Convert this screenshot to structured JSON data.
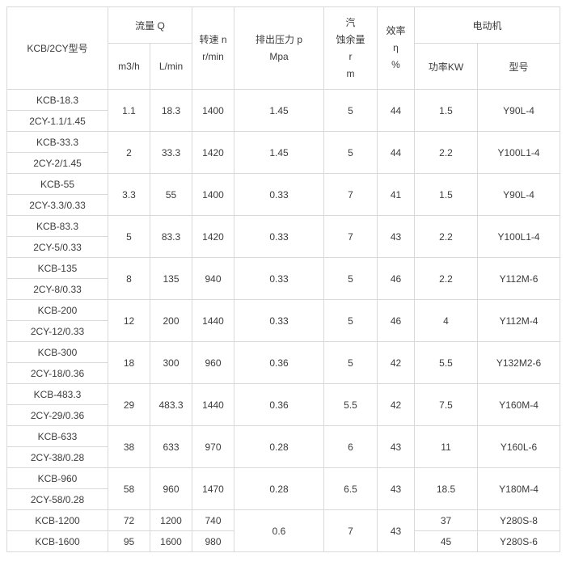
{
  "table": {
    "header": {
      "model": "KCB/2CY型号",
      "flow": "流量 Q",
      "flow_m3h": "m3/h",
      "flow_lmin": "L/min",
      "speed_lines": [
        "转速 n",
        "r/min"
      ],
      "pressure_lines": [
        "排出压力 p",
        "Mpa"
      ],
      "npsh_lines": [
        "汽",
        "蚀余量",
        "r",
        "m"
      ],
      "efficiency_lines": [
        "效率",
        "η",
        "%"
      ],
      "motor": "电动机",
      "motor_power": "功率KW",
      "motor_model": "型号"
    },
    "groups": [
      {
        "models": [
          "KCB-18.3",
          "2CY-1.1/1.45"
        ],
        "m3h": "1.1",
        "lmin": "18.3",
        "speed": "1400",
        "pressure": "1.45",
        "npsh": "5",
        "eff": "44",
        "power": "1.5",
        "motor": "Y90L-4"
      },
      {
        "models": [
          "KCB-33.3",
          "2CY-2/1.45"
        ],
        "m3h": "2",
        "lmin": "33.3",
        "speed": "1420",
        "pressure": "1.45",
        "npsh": "5",
        "eff": "44",
        "power": "2.2",
        "motor": "Y100L1-4"
      },
      {
        "models": [
          "KCB-55",
          "2CY-3.3/0.33"
        ],
        "m3h": "3.3",
        "lmin": "55",
        "speed": "1400",
        "pressure": "0.33",
        "npsh": "7",
        "eff": "41",
        "power": "1.5",
        "motor": "Y90L-4"
      },
      {
        "models": [
          "KCB-83.3",
          "2CY-5/0.33"
        ],
        "m3h": "5",
        "lmin": "83.3",
        "speed": "1420",
        "pressure": "0.33",
        "npsh": "7",
        "eff": "43",
        "power": "2.2",
        "motor": "Y100L1-4"
      },
      {
        "models": [
          "KCB-135",
          "2CY-8/0.33"
        ],
        "m3h": "8",
        "lmin": "135",
        "speed": "940",
        "pressure": "0.33",
        "npsh": "5",
        "eff": "46",
        "power": "2.2",
        "motor": "Y112M-6"
      },
      {
        "models": [
          "KCB-200",
          "2CY-12/0.33"
        ],
        "m3h": "12",
        "lmin": "200",
        "speed": "1440",
        "pressure": "0.33",
        "npsh": "5",
        "eff": "46",
        "power": "4",
        "motor": "Y112M-4"
      },
      {
        "models": [
          "KCB-300",
          "2CY-18/0.36"
        ],
        "m3h": "18",
        "lmin": "300",
        "speed": "960",
        "pressure": "0.36",
        "npsh": "5",
        "eff": "42",
        "power": "5.5",
        "motor": "Y132M2-6"
      },
      {
        "models": [
          "KCB-483.3",
          "2CY-29/0.36"
        ],
        "m3h": "29",
        "lmin": "483.3",
        "speed": "1440",
        "pressure": "0.36",
        "npsh": "5.5",
        "eff": "42",
        "power": "7.5",
        "motor": "Y160M-4"
      },
      {
        "models": [
          "KCB-633",
          "2CY-38/0.28"
        ],
        "m3h": "38",
        "lmin": "633",
        "speed": "970",
        "pressure": "0.28",
        "npsh": "6",
        "eff": "43",
        "power": "11",
        "motor": "Y160L-6"
      },
      {
        "models": [
          "KCB-960",
          "2CY-58/0.28"
        ],
        "m3h": "58",
        "lmin": "960",
        "speed": "1470",
        "pressure": "0.28",
        "npsh": "6.5",
        "eff": "43",
        "power": "18.5",
        "motor": "Y180M-4"
      }
    ],
    "last_group": {
      "pressure": "0.6",
      "npsh": "7",
      "eff": "43",
      "rows": [
        {
          "model": "KCB-1200",
          "m3h": "72",
          "lmin": "1200",
          "speed": "740",
          "power": "37",
          "motor": "Y280S-8"
        },
        {
          "model": "KCB-1600",
          "m3h": "95",
          "lmin": "1600",
          "speed": "980",
          "power": "45",
          "motor": "Y280S-6"
        }
      ]
    },
    "colors": {
      "border": "#d9d9d9",
      "text": "#3c3c3c",
      "background": "#ffffff"
    }
  }
}
